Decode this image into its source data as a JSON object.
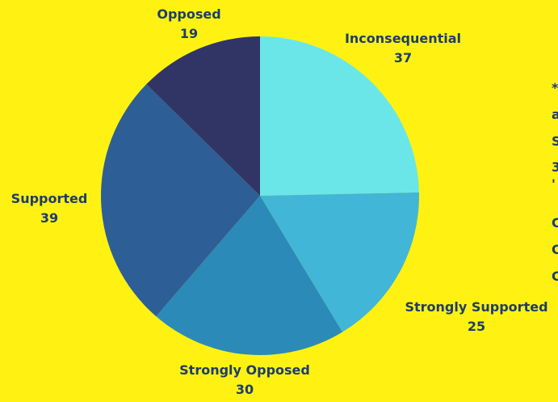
{
  "chart_data": {
    "type": "pie",
    "title": "",
    "slices": [
      {
        "label": "Inconsequential",
        "value": 37,
        "color": "#6AE6E8"
      },
      {
        "label": "Strongly Supported",
        "value": 25,
        "color": "#42B6D6"
      },
      {
        "label": "Strongly Opposed",
        "value": 30,
        "color": "#2B8AB8"
      },
      {
        "label": "Supported",
        "value": 39,
        "color": "#2E5E96"
      },
      {
        "label": "Opposed",
        "value": 19,
        "color": "#313566"
      }
    ],
    "start_angle": "12 o'clock",
    "direction": "clockwise",
    "labels_position": "outside",
    "background": "#FFF212"
  },
  "side_text": [
    "*",
    "a",
    "S",
    "3",
    "'",
    "C",
    "C",
    "C"
  ]
}
